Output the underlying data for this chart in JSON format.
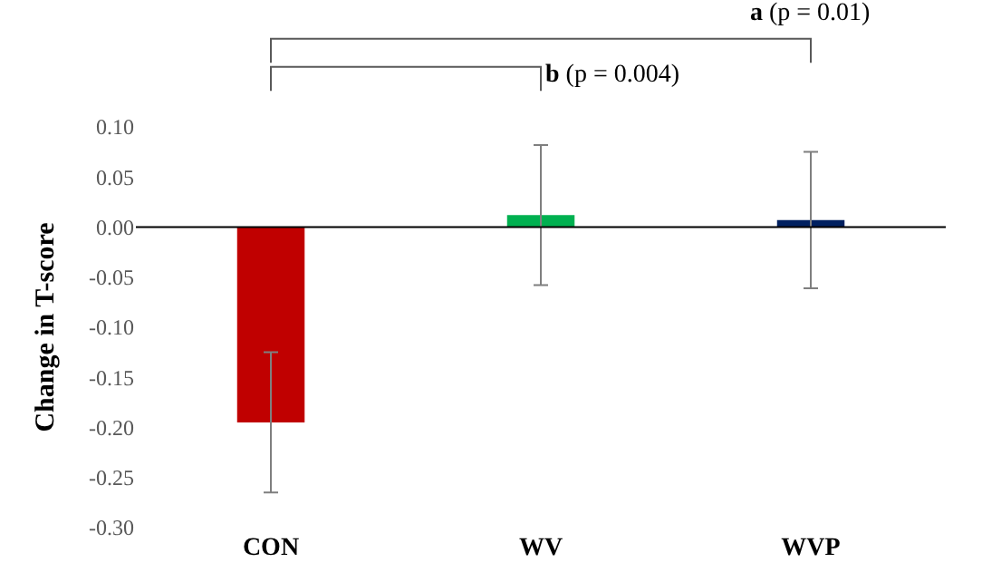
{
  "chart_data": {
    "type": "bar",
    "ylabel": "Change in T-score",
    "categories": [
      "CON",
      "WV",
      "WVP"
    ],
    "values": [
      -0.195,
      0.012,
      0.007
    ],
    "colors": [
      "#c00000",
      "#00b050",
      "#002060"
    ],
    "errors": [
      0.07,
      0.07,
      0.068
    ],
    "ylim": [
      -0.3,
      0.1
    ],
    "yticks": [
      {
        "value": -0.3,
        "label": "-0.30"
      },
      {
        "value": -0.25,
        "label": "-0.25"
      },
      {
        "value": -0.2,
        "label": "-0.20"
      },
      {
        "value": -0.15,
        "label": "-0.15"
      },
      {
        "value": -0.1,
        "label": "-0.10"
      },
      {
        "value": -0.05,
        "label": "-0.05"
      },
      {
        "value": 0,
        "label": "0.00"
      },
      {
        "value": 0.05,
        "label": "0.05"
      },
      {
        "value": 0.1,
        "label": "0.10"
      }
    ],
    "legend": false,
    "ref_lines": [
      {
        "axis": "y",
        "value": 0,
        "color": "#000000"
      }
    ],
    "annotations": [
      "a (p = 0.01)",
      "b (p = 0.004)"
    ]
  }
}
